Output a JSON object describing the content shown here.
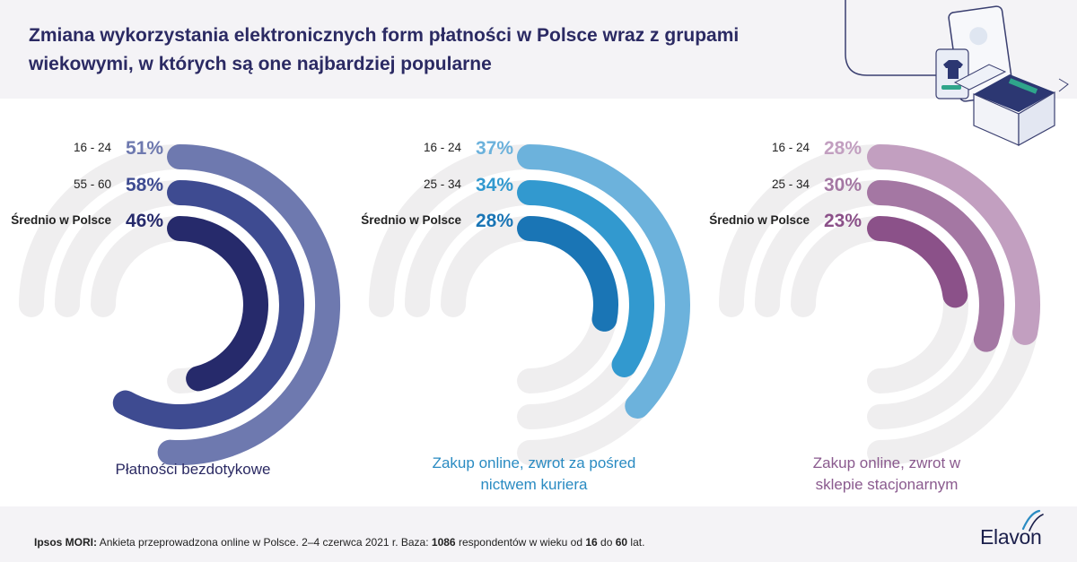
{
  "title_line1": "Zmiana wykorzystania elektronicznych form płatności w Polsce wraz z grupami",
  "title_line2": "wiekowymi, w których są one najbardziej popularne",
  "colors": {
    "title": "#2b2a63",
    "track": "#efeeef",
    "header_bg": "#f4f3f6"
  },
  "chart_data": [
    {
      "type": "radial-bar",
      "title": "Płatności bezdotykowe",
      "unit": "%",
      "caption_color": "#2b2a63",
      "series": [
        {
          "label": "16 - 24",
          "value": 51,
          "display": "51%",
          "color": "#6e79af",
          "bold_label": false
        },
        {
          "label": "55 - 60",
          "value": 58,
          "display": "58%",
          "color": "#3e4b91",
          "bold_label": false
        },
        {
          "label": "Średnio w Polsce",
          "value": 46,
          "display": "46%",
          "color": "#262a6b",
          "bold_label": true
        }
      ]
    },
    {
      "type": "radial-bar",
      "title": "Zakup online, zwrot za pośred nictwem kuriera",
      "caption_line1": "Zakup online, zwrot za pośred",
      "caption_line2": "nictwem kuriera",
      "unit": "%",
      "caption_color": "#2a8bc2",
      "series": [
        {
          "label": "16 - 24",
          "value": 37,
          "display": "37%",
          "color": "#6cb2dc",
          "bold_label": false
        },
        {
          "label": "25 - 34",
          "value": 34,
          "display": "34%",
          "color": "#3299cf",
          "bold_label": false
        },
        {
          "label": "Średnio w Polsce",
          "value": 28,
          "display": "28%",
          "color": "#1a75b5",
          "bold_label": true
        }
      ]
    },
    {
      "type": "radial-bar",
      "title": "Zakup online, zwrot w sklepie stacjonarnym",
      "caption_line1": "Zakup online, zwrot w",
      "caption_line2": "sklepie stacjonarnym",
      "unit": "%",
      "caption_color": "#8a5a8e",
      "series": [
        {
          "label": "16 - 24",
          "value": 28,
          "display": "28%",
          "color": "#c29fc0",
          "bold_label": false
        },
        {
          "label": "25 - 34",
          "value": 30,
          "display": "30%",
          "color": "#a477a3",
          "bold_label": false
        },
        {
          "label": "Średnio w Polsce",
          "value": 23,
          "display": "23%",
          "color": "#8b5189",
          "bold_label": true
        }
      ]
    }
  ],
  "footnote": {
    "source": "Ipsos MORI:",
    "text1": " Ankieta przeprowadzona online w Polsce. 2–4 czerwca 2021 r. Baza: ",
    "base": "1086",
    "text2": " respondentów w wieku od ",
    "age_from": "16",
    "text3": " do ",
    "age_to": "60",
    "text4": " lat."
  },
  "logo": "Elavon"
}
